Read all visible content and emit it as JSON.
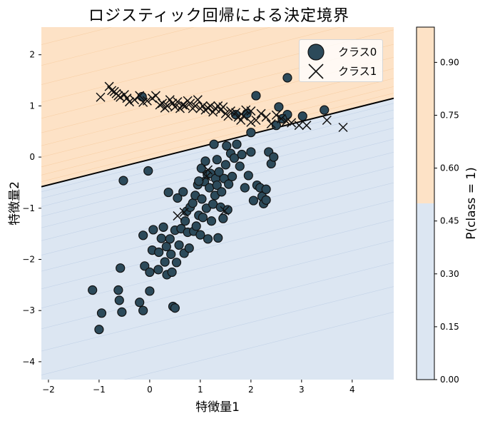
{
  "title": "ロジスティック回帰による決定境界",
  "colors": {
    "class0_region": "#dce6f2",
    "class1_region": "#fde2c6",
    "class0_marker_fill": "#2c4a5a",
    "marker_edge": "#111111",
    "boundary": "#000000"
  },
  "legend": {
    "items": [
      {
        "label": "クラス0",
        "marker": "circle-icon"
      },
      {
        "label": "クラス1",
        "marker": "x-icon"
      }
    ]
  },
  "axes": {
    "xlabel": "特徴量1",
    "ylabel": "特徴量2",
    "xticks": [
      "−2",
      "−1",
      "0",
      "1",
      "2",
      "3",
      "4"
    ],
    "yticks": [
      "2",
      "1",
      "0",
      "−1",
      "−2",
      "−3",
      "−4"
    ]
  },
  "colorbar": {
    "label": "P(class = 1)",
    "ticks": [
      "0.90",
      "0.75",
      "0.60",
      "0.45",
      "0.30",
      "0.15",
      "0.00"
    ]
  },
  "chart_data": {
    "type": "scatter",
    "title": "ロジスティック回帰による決定境界",
    "xlabel": "特徴量1",
    "ylabel": "特徴量2",
    "xlim": [
      -2.14,
      4.82
    ],
    "ylim": [
      -4.35,
      2.54
    ],
    "grid": false,
    "legend_position": "upper right",
    "background": "filled contour of P(class=1), threshold at 0.5 (blue below, orange above)",
    "decision_boundary": {
      "x": [
        -2.14,
        4.82
      ],
      "y": [
        -0.58,
        1.15
      ]
    },
    "colorbar": {
      "label": "P(class = 1)",
      "range": [
        0.0,
        1.0
      ],
      "ticks": [
        0.0,
        0.15,
        0.3,
        0.45,
        0.6,
        0.75,
        0.9
      ]
    },
    "series": [
      {
        "name": "クラス0",
        "marker": "circle",
        "points": [
          [
            -1.13,
            -2.6
          ],
          [
            -0.95,
            -3.05
          ],
          [
            -1.0,
            -3.37
          ],
          [
            -0.62,
            -2.6
          ],
          [
            -0.6,
            -2.8
          ],
          [
            -0.55,
            -3.03
          ],
          [
            -0.58,
            -2.17
          ],
          [
            -0.52,
            -0.46
          ],
          [
            -0.2,
            -2.84
          ],
          [
            -0.13,
            -3.0
          ],
          [
            0.0,
            -2.62
          ],
          [
            -0.03,
            -0.27
          ],
          [
            -0.13,
            -1.53
          ],
          [
            -0.1,
            -2.13
          ],
          [
            0.0,
            -2.25
          ],
          [
            0.05,
            -1.82
          ],
          [
            0.07,
            -1.42
          ],
          [
            0.17,
            -2.2
          ],
          [
            0.18,
            -1.86
          ],
          [
            0.23,
            -1.59
          ],
          [
            0.27,
            -1.37
          ],
          [
            0.3,
            -2.05
          ],
          [
            0.33,
            -1.75
          ],
          [
            0.34,
            -2.3
          ],
          [
            0.37,
            -0.69
          ],
          [
            0.4,
            -1.6
          ],
          [
            0.42,
            -1.9
          ],
          [
            0.44,
            -2.25
          ],
          [
            0.46,
            -2.92
          ],
          [
            0.5,
            -2.95
          ],
          [
            0.5,
            -1.43
          ],
          [
            0.53,
            -2.06
          ],
          [
            0.55,
            -0.8
          ],
          [
            0.58,
            -1.72
          ],
          [
            0.62,
            -1.4
          ],
          [
            0.66,
            -0.68
          ],
          [
            0.68,
            -1.88
          ],
          [
            0.7,
            -1.25
          ],
          [
            0.73,
            -1.06
          ],
          [
            0.75,
            -1.47
          ],
          [
            0.78,
            -1.78
          ],
          [
            0.8,
            -0.98
          ],
          [
            0.85,
            -0.9
          ],
          [
            0.87,
            -1.45
          ],
          [
            0.9,
            -0.75
          ],
          [
            0.92,
            -1.35
          ],
          [
            0.95,
            -0.54
          ],
          [
            0.97,
            -1.14
          ],
          [
            1.0,
            -1.52
          ],
          [
            1.02,
            -0.22
          ],
          [
            1.03,
            -0.82
          ],
          [
            1.05,
            -1.18
          ],
          [
            1.08,
            -0.48
          ],
          [
            1.1,
            -0.08
          ],
          [
            1.12,
            -1.0
          ],
          [
            1.14,
            -0.34
          ],
          [
            1.15,
            -1.6
          ],
          [
            1.18,
            -0.6
          ],
          [
            1.2,
            -0.32
          ],
          [
            1.22,
            -1.25
          ],
          [
            1.25,
            -0.92
          ],
          [
            1.27,
            0.25
          ],
          [
            1.29,
            -0.75
          ],
          [
            1.3,
            -0.42
          ],
          [
            1.33,
            -0.55
          ],
          [
            1.35,
            -1.58
          ],
          [
            1.37,
            -0.29
          ],
          [
            1.4,
            -0.98
          ],
          [
            1.42,
            -0.68
          ],
          [
            1.45,
            -1.2
          ],
          [
            1.47,
            -0.42
          ],
          [
            1.5,
            -0.15
          ],
          [
            1.52,
            0.22
          ],
          [
            1.54,
            -1.03
          ],
          [
            1.56,
            -0.53
          ],
          [
            1.6,
            0.07
          ],
          [
            1.63,
            -0.38
          ],
          [
            1.67,
            -0.02
          ],
          [
            1.72,
            0.25
          ],
          [
            1.78,
            -0.18
          ],
          [
            1.82,
            0.05
          ],
          [
            1.88,
            -0.6
          ],
          [
            1.95,
            -0.36
          ],
          [
            2.0,
            0.1
          ],
          [
            2.0,
            0.48
          ],
          [
            2.05,
            -0.85
          ],
          [
            2.12,
            -0.55
          ],
          [
            2.18,
            -0.6
          ],
          [
            2.22,
            -0.77
          ],
          [
            2.25,
            -0.91
          ],
          [
            2.3,
            -0.84
          ],
          [
            2.3,
            -0.63
          ],
          [
            2.35,
            0.1
          ],
          [
            2.4,
            -0.13
          ],
          [
            2.45,
            0.0
          ],
          [
            2.55,
            0.98
          ],
          [
            2.72,
            1.55
          ],
          [
            2.72,
            0.83
          ],
          [
            3.45,
            0.92
          ],
          [
            2.5,
            0.62
          ],
          [
            2.62,
            0.75
          ],
          [
            3.02,
            0.8
          ],
          [
            -0.15,
            1.18
          ],
          [
            2.1,
            1.2
          ],
          [
            1.7,
            0.83
          ],
          [
            1.92,
            0.85
          ],
          [
            0.97,
            -0.47
          ],
          [
            1.33,
            -0.05
          ]
        ]
      },
      {
        "name": "クラス1",
        "marker": "x",
        "points": [
          [
            -0.97,
            1.17
          ],
          [
            -0.8,
            1.38
          ],
          [
            -0.75,
            1.3
          ],
          [
            -0.7,
            1.28
          ],
          [
            -0.66,
            1.24
          ],
          [
            -0.62,
            1.2
          ],
          [
            -0.58,
            1.17
          ],
          [
            -0.5,
            1.22
          ],
          [
            -0.45,
            1.15
          ],
          [
            -0.4,
            1.08
          ],
          [
            -0.3,
            1.12
          ],
          [
            -0.2,
            1.2
          ],
          [
            -0.13,
            1.07
          ],
          [
            -0.05,
            1.1
          ],
          [
            0.05,
            1.15
          ],
          [
            0.12,
            1.2
          ],
          [
            0.2,
            1.02
          ],
          [
            0.25,
            1.05
          ],
          [
            0.3,
            0.96
          ],
          [
            0.35,
            1.0
          ],
          [
            0.4,
            1.12
          ],
          [
            0.45,
            1.05
          ],
          [
            0.5,
            0.98
          ],
          [
            0.55,
            1.08
          ],
          [
            0.6,
            0.95
          ],
          [
            0.65,
            1.02
          ],
          [
            0.7,
            1.0
          ],
          [
            0.75,
            1.1
          ],
          [
            0.8,
            1.05
          ],
          [
            0.85,
            0.95
          ],
          [
            0.9,
            1.0
          ],
          [
            0.95,
            1.12
          ],
          [
            1.0,
            0.95
          ],
          [
            1.05,
            1.0
          ],
          [
            1.1,
            0.92
          ],
          [
            1.15,
            0.96
          ],
          [
            1.2,
            1.0
          ],
          [
            1.25,
            0.88
          ],
          [
            1.3,
            0.95
          ],
          [
            1.35,
            1.0
          ],
          [
            1.4,
            0.92
          ],
          [
            1.45,
            0.98
          ],
          [
            1.5,
            0.85
          ],
          [
            1.55,
            0.8
          ],
          [
            1.6,
            0.9
          ],
          [
            1.7,
            0.87
          ],
          [
            1.75,
            0.78
          ],
          [
            1.8,
            0.72
          ],
          [
            1.85,
            0.8
          ],
          [
            1.9,
            0.92
          ],
          [
            2.0,
            0.68
          ],
          [
            2.1,
            0.72
          ],
          [
            2.2,
            0.85
          ],
          [
            2.3,
            0.78
          ],
          [
            2.4,
            0.65
          ],
          [
            2.5,
            0.82
          ],
          [
            2.6,
            0.75
          ],
          [
            2.7,
            0.7
          ],
          [
            2.8,
            0.67
          ],
          [
            2.95,
            0.62
          ],
          [
            3.1,
            0.62
          ],
          [
            3.5,
            0.72
          ],
          [
            3.82,
            0.58
          ],
          [
            1.48,
            -1.05
          ],
          [
            0.55,
            -1.15
          ],
          [
            0.68,
            -1.08
          ],
          [
            1.15,
            -0.25
          ],
          [
            1.12,
            -0.38
          ],
          [
            2.0,
            0.9
          ]
        ]
      }
    ]
  }
}
